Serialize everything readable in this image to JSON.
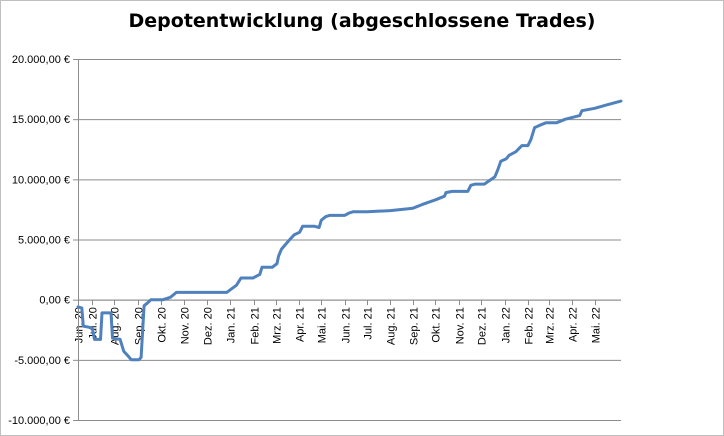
{
  "chart_data": {
    "type": "line",
    "title": "Depotentwicklung (abgeschlossene Trades)",
    "xlabel": "",
    "ylabel": "",
    "ylim": [
      -10000,
      20000
    ],
    "yticks": [
      20000,
      15000,
      10000,
      5000,
      0,
      -5000,
      -10000
    ],
    "ytick_labels": [
      "20.000,00 €",
      "15.000,00 €",
      "10.000,00 €",
      "5.000,00 €",
      "0,00 €",
      "-5.000,00 €",
      "-10.000,00 €"
    ],
    "x_range": [
      "2020-06-14",
      "2022-06-07"
    ],
    "grid": "horizontal",
    "legend": "none",
    "line_color": "#4f81bd",
    "xticks": [
      {
        "label": "Jun. 20",
        "date": "2020-06-14"
      },
      {
        "label": "Jul. 20",
        "date": "2020-07-02"
      },
      {
        "label": "Aug. 20",
        "date": "2020-08-01"
      },
      {
        "label": "Sep. 20",
        "date": "2020-09-02"
      },
      {
        "label": "Okt. 20",
        "date": "2020-10-02"
      },
      {
        "label": "Nov. 20",
        "date": "2020-11-02"
      },
      {
        "label": "Dez. 20",
        "date": "2020-12-03"
      },
      {
        "label": "Jan. 21",
        "date": "2021-01-03"
      },
      {
        "label": "Feb. 21",
        "date": "2021-02-03"
      },
      {
        "label": "Mrz. 21",
        "date": "2021-03-04"
      },
      {
        "label": "Apr. 21",
        "date": "2021-04-04"
      },
      {
        "label": "Mai. 21",
        "date": "2021-05-04"
      },
      {
        "label": "Jun. 21",
        "date": "2021-06-04"
      },
      {
        "label": "Jul. 21",
        "date": "2021-07-04"
      },
      {
        "label": "Aug. 21",
        "date": "2021-08-04"
      },
      {
        "label": "Sep. 21",
        "date": "2021-09-03"
      },
      {
        "label": "Okt. 21",
        "date": "2021-10-03"
      },
      {
        "label": "Nov. 21",
        "date": "2021-11-03"
      },
      {
        "label": "Dez. 21",
        "date": "2021-12-03"
      },
      {
        "label": "Jan. 22",
        "date": "2022-01-03"
      },
      {
        "label": "Feb. 22",
        "date": "2022-02-03"
      },
      {
        "label": "Mrz. 22",
        "date": "2022-03-03"
      },
      {
        "label": "Apr. 22",
        "date": "2022-04-03"
      },
      {
        "label": "Mai. 22",
        "date": "2022-05-03"
      }
    ],
    "series": [
      {
        "name": "",
        "points": [
          [
            "2020-06-14",
            -600
          ],
          [
            "2020-06-19",
            -700
          ],
          [
            "2020-06-21",
            -2200
          ],
          [
            "2020-06-29",
            -2300
          ],
          [
            "2020-07-03",
            -2400
          ],
          [
            "2020-07-06",
            -3300
          ],
          [
            "2020-07-14",
            -3300
          ],
          [
            "2020-07-16",
            -1100
          ],
          [
            "2020-07-28",
            -1100
          ],
          [
            "2020-07-30",
            -3200
          ],
          [
            "2020-08-09",
            -3300
          ],
          [
            "2020-08-14",
            -4300
          ],
          [
            "2020-08-20",
            -4700
          ],
          [
            "2020-08-24",
            -5000
          ],
          [
            "2020-09-03",
            -5000
          ],
          [
            "2020-09-06",
            -4800
          ],
          [
            "2020-09-10",
            -500
          ],
          [
            "2020-09-14",
            -300
          ],
          [
            "2020-09-19",
            0
          ],
          [
            "2020-10-05",
            0
          ],
          [
            "2020-10-15",
            200
          ],
          [
            "2020-10-23",
            600
          ],
          [
            "2020-12-03",
            600
          ],
          [
            "2020-12-29",
            600
          ],
          [
            "2021-01-11",
            1200
          ],
          [
            "2021-01-17",
            1800
          ],
          [
            "2021-02-02",
            1800
          ],
          [
            "2021-02-11",
            2100
          ],
          [
            "2021-02-14",
            2700
          ],
          [
            "2021-02-28",
            2700
          ],
          [
            "2021-03-06",
            3000
          ],
          [
            "2021-03-08",
            3600
          ],
          [
            "2021-03-12",
            4200
          ],
          [
            "2021-03-23",
            5000
          ],
          [
            "2021-03-29",
            5400
          ],
          [
            "2021-04-05",
            5600
          ],
          [
            "2021-04-09",
            6100
          ],
          [
            "2021-04-25",
            6100
          ],
          [
            "2021-05-01",
            6000
          ],
          [
            "2021-05-04",
            6600
          ],
          [
            "2021-05-10",
            6900
          ],
          [
            "2021-05-15",
            7000
          ],
          [
            "2021-06-04",
            7000
          ],
          [
            "2021-06-10",
            7200
          ],
          [
            "2021-06-15",
            7300
          ],
          [
            "2021-07-04",
            7300
          ],
          [
            "2021-08-04",
            7400
          ],
          [
            "2021-09-03",
            7600
          ],
          [
            "2021-09-15",
            7900
          ],
          [
            "2021-10-03",
            8300
          ],
          [
            "2021-10-15",
            8600
          ],
          [
            "2021-10-17",
            8900
          ],
          [
            "2021-10-25",
            9000
          ],
          [
            "2021-11-15",
            9000
          ],
          [
            "2021-11-19",
            9500
          ],
          [
            "2021-11-25",
            9600
          ],
          [
            "2021-12-07",
            9600
          ],
          [
            "2021-12-21",
            10200
          ],
          [
            "2021-12-25",
            10800
          ],
          [
            "2021-12-29",
            11500
          ],
          [
            "2022-01-05",
            11700
          ],
          [
            "2022-01-09",
            12000
          ],
          [
            "2022-01-18",
            12300
          ],
          [
            "2022-01-26",
            12800
          ],
          [
            "2022-02-03",
            12800
          ],
          [
            "2022-02-07",
            13300
          ],
          [
            "2022-02-12",
            14300
          ],
          [
            "2022-02-19",
            14500
          ],
          [
            "2022-02-27",
            14700
          ],
          [
            "2022-03-13",
            14700
          ],
          [
            "2022-03-25",
            15000
          ],
          [
            "2022-04-13",
            15300
          ],
          [
            "2022-04-16",
            15700
          ],
          [
            "2022-05-03",
            15900
          ],
          [
            "2022-05-20",
            16200
          ],
          [
            "2022-06-07",
            16500
          ]
        ]
      }
    ]
  }
}
